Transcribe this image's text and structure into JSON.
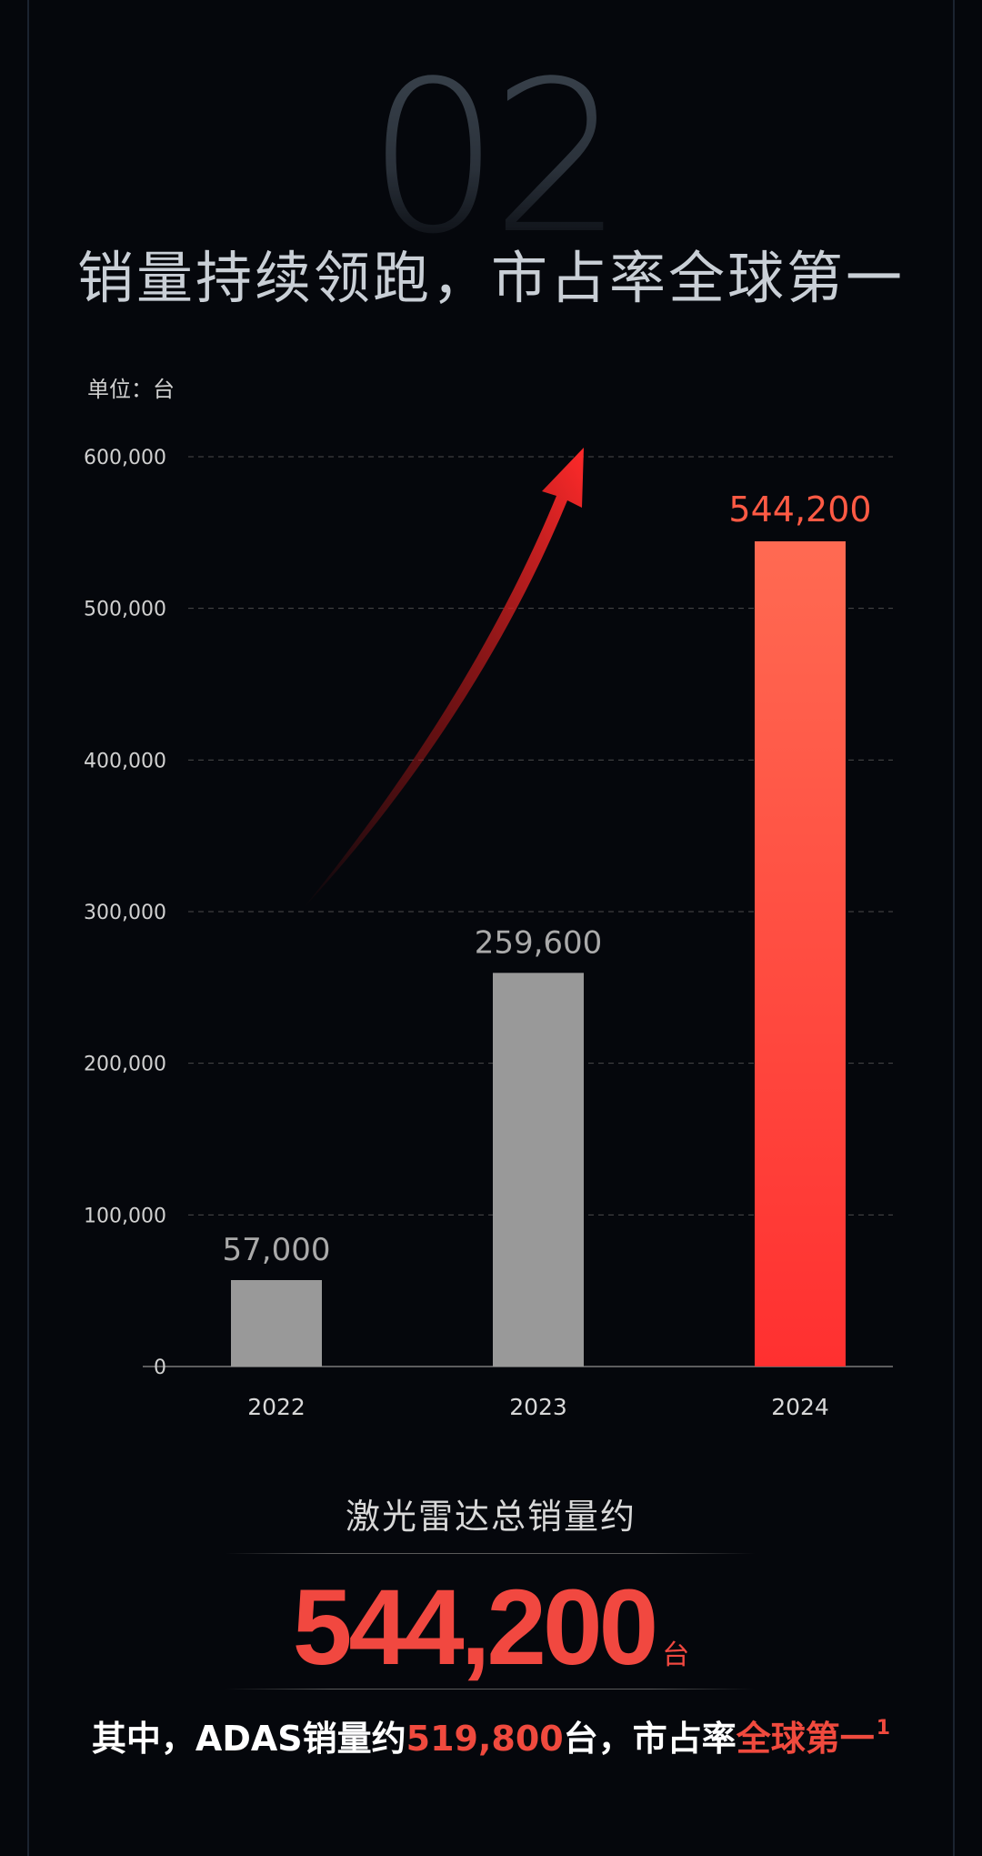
{
  "section_number": "02",
  "headline": "销量持续领跑，市占率全球第一",
  "chart_data": {
    "type": "bar",
    "unit_label": "单位：台",
    "categories": [
      "2022",
      "2023",
      "2024"
    ],
    "values": [
      57000,
      259600,
      544200
    ],
    "value_labels": [
      "57,000",
      "259,600",
      "544,200"
    ],
    "y_ticks": [
      "0",
      "100,000",
      "200,000",
      "300,000",
      "400,000",
      "500,000",
      "600,000"
    ],
    "ylim": [
      0,
      600000
    ],
    "grid": true,
    "bar_colors": [
      "#999999",
      "#999999",
      "#ff4d3c"
    ],
    "highlight_color": "#ff5a44",
    "label_color": "#aaaaaa",
    "trend_arrow": true
  },
  "summary": {
    "label": "激光雷达总销量约",
    "total": "544,200",
    "total_unit": "台",
    "note_prefix": "其中，ADAS销量约",
    "note_value": "519,800",
    "note_mid": "台，市占率",
    "note_highlight": "全球第一",
    "note_footnote": "1"
  }
}
